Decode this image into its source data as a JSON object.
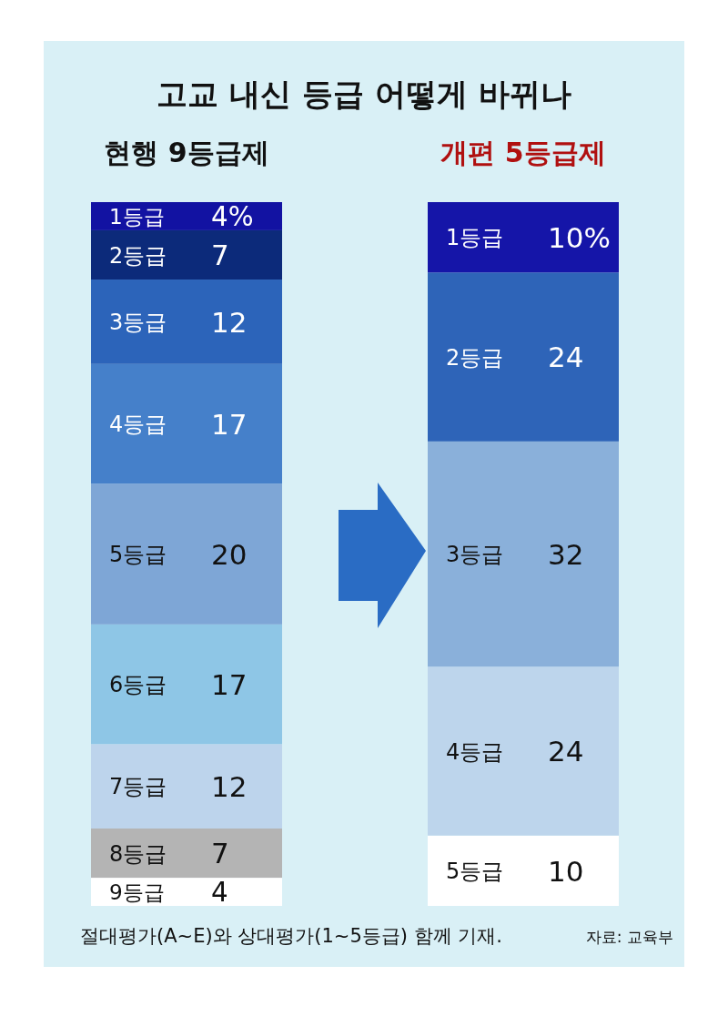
{
  "chart_data": {
    "type": "bar",
    "stacked": true,
    "title": "고교 내신 등급 어떻게 바뀌나",
    "categories": [
      "현행 9등급제",
      "개편 5등급제"
    ],
    "series": [
      {
        "name": "9등급",
        "colors": [
          "#ffffff",
          null
        ],
        "values": [
          4,
          null
        ],
        "value_labels": [
          "4",
          null
        ]
      },
      {
        "name": "8등급",
        "colors": [
          "#b4b4b4",
          null
        ],
        "values": [
          7,
          null
        ],
        "value_labels": [
          "7",
          null
        ]
      },
      {
        "name": "7등급",
        "colors": [
          "#bdd4ec",
          null
        ],
        "values": [
          12,
          null
        ],
        "value_labels": [
          "12",
          null
        ]
      },
      {
        "name": "6등급",
        "colors": [
          "#8ec6e6",
          null
        ],
        "values": [
          17,
          null
        ],
        "value_labels": [
          "17",
          null
        ]
      },
      {
        "name": "5등급",
        "colors": [
          "#7ea6d6",
          "#ffffff"
        ],
        "values": [
          20,
          10
        ],
        "value_labels": [
          "20",
          "10"
        ]
      },
      {
        "name": "4등급",
        "colors": [
          "#4580ca",
          "#bdd5ec"
        ],
        "values": [
          17,
          24
        ],
        "value_labels": [
          "17",
          "24"
        ]
      },
      {
        "name": "3등급",
        "colors": [
          "#2c64ba",
          "#8ab0da"
        ],
        "values": [
          12,
          32
        ],
        "value_labels": [
          "12",
          "32"
        ]
      },
      {
        "name": "2등급",
        "colors": [
          "#0c2a7a",
          "#2e64b8"
        ],
        "values": [
          7,
          24
        ],
        "value_labels": [
          "7",
          "24"
        ]
      },
      {
        "name": "1등급",
        "colors": [
          "#1212a2",
          "#1515a8"
        ],
        "values": [
          4,
          10
        ],
        "value_labels": [
          "4%",
          "10%"
        ]
      }
    ],
    "annotations": [
      "절대평가(A~E)와 상대평가(1~5등급) 함께 기재.",
      "자료: 교육부"
    ]
  }
}
